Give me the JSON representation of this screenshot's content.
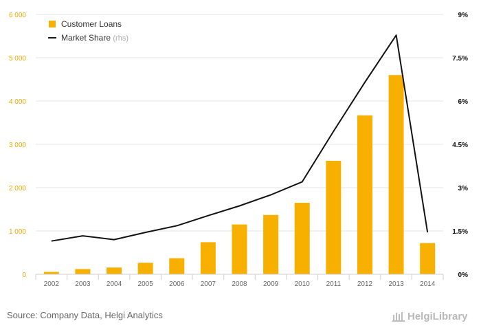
{
  "chart_data": {
    "type": "bar",
    "categories": [
      "2002",
      "2003",
      "2004",
      "2005",
      "2006",
      "2007",
      "2008",
      "2009",
      "2010",
      "2011",
      "2012",
      "2013",
      "2014"
    ],
    "series": [
      {
        "name": "Customer Loans",
        "type": "bar",
        "axis": "left",
        "color": "#f7b000",
        "values": [
          55,
          120,
          155,
          265,
          370,
          740,
          1150,
          1370,
          1650,
          2620,
          3670,
          4600,
          720
        ]
      },
      {
        "name": "Market Share",
        "name_suffix": "(rhs)",
        "type": "line",
        "axis": "right",
        "color": "#111111",
        "values": [
          1.15,
          1.33,
          1.2,
          1.45,
          1.68,
          2.03,
          2.37,
          2.75,
          3.2,
          4.95,
          6.65,
          8.28,
          1.45
        ]
      }
    ],
    "ylim": [
      0,
      6000
    ],
    "y_ticks": [
      "0",
      "1 000",
      "2 000",
      "3 000",
      "4 000",
      "5 000",
      "6 000"
    ],
    "y2lim": [
      0,
      9
    ],
    "y2_ticks": [
      "0%",
      "1.5%",
      "3%",
      "4.5%",
      "6%",
      "7.5%",
      "9%"
    ],
    "grid": true,
    "legend_position": "top-left",
    "left_axis_color": "#f0a800"
  },
  "footer": {
    "source": "Source: Company Data, Helgi Analytics",
    "brand": "HelgiLibrary"
  }
}
